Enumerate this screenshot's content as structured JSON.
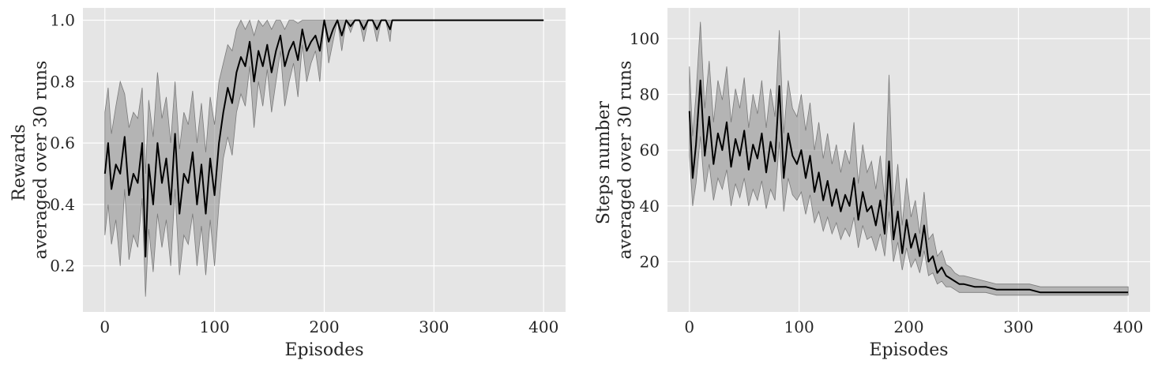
{
  "chart_data": [
    {
      "type": "line",
      "title": "",
      "xlabel": "Episodes",
      "ylabel_lines": [
        "Rewards",
        "averaged over 30 runs"
      ],
      "xlim": [
        -20,
        420
      ],
      "ylim": [
        0.05,
        1.04
      ],
      "xticks": [
        0,
        100,
        200,
        300,
        400
      ],
      "yticks": [
        0.2,
        0.4,
        0.6,
        0.8,
        1.0
      ],
      "xtick_labels": [
        "0",
        "100",
        "200",
        "300",
        "400"
      ],
      "ytick_labels": [
        "0.2",
        "0.4",
        "0.6",
        "0.8",
        "1.0"
      ],
      "grid": true,
      "legend": "none",
      "series": [
        {
          "kind": "mean",
          "color": "#000000",
          "x": [
            0,
            3,
            6,
            10,
            14,
            18,
            22,
            26,
            30,
            34,
            37,
            40,
            44,
            48,
            52,
            56,
            60,
            64,
            68,
            72,
            76,
            80,
            84,
            88,
            92,
            96,
            100,
            104,
            108,
            112,
            116,
            120,
            124,
            128,
            132,
            136,
            140,
            144,
            148,
            152,
            156,
            160,
            164,
            168,
            172,
            176,
            180,
            184,
            188,
            192,
            196,
            200,
            204,
            208,
            212,
            216,
            220,
            224,
            228,
            232,
            236,
            240,
            244,
            248,
            252,
            256,
            260,
            262,
            300,
            350,
            400
          ],
          "y": [
            0.5,
            0.6,
            0.45,
            0.53,
            0.5,
            0.62,
            0.43,
            0.5,
            0.47,
            0.6,
            0.23,
            0.53,
            0.4,
            0.6,
            0.47,
            0.55,
            0.4,
            0.63,
            0.37,
            0.5,
            0.47,
            0.57,
            0.4,
            0.53,
            0.37,
            0.55,
            0.43,
            0.6,
            0.7,
            0.78,
            0.73,
            0.83,
            0.88,
            0.85,
            0.93,
            0.8,
            0.9,
            0.85,
            0.92,
            0.83,
            0.9,
            0.95,
            0.85,
            0.9,
            0.93,
            0.87,
            0.97,
            0.9,
            0.93,
            0.95,
            0.9,
            1.0,
            0.93,
            0.97,
            1.0,
            0.95,
            1.0,
            0.98,
            1.0,
            1.0,
            0.97,
            1.0,
            1.0,
            0.97,
            1.0,
            1.0,
            0.97,
            1.0,
            1.0,
            1.0,
            1.0
          ]
        },
        {
          "kind": "band_upper",
          "color": "#8c8c8c",
          "x": [
            0,
            3,
            6,
            10,
            14,
            18,
            22,
            26,
            30,
            34,
            37,
            40,
            44,
            48,
            52,
            56,
            60,
            64,
            68,
            72,
            76,
            80,
            84,
            88,
            92,
            96,
            100,
            104,
            108,
            112,
            116,
            120,
            124,
            128,
            132,
            136,
            140,
            144,
            148,
            152,
            156,
            160,
            164,
            168,
            172,
            176,
            180,
            184,
            188,
            192,
            196,
            200,
            204,
            208,
            212,
            216,
            220,
            224,
            228,
            232,
            236,
            240,
            244,
            248,
            252,
            256,
            260,
            262,
            300,
            350,
            400
          ],
          "y": [
            0.7,
            0.78,
            0.63,
            0.72,
            0.8,
            0.76,
            0.65,
            0.7,
            0.68,
            0.78,
            0.5,
            0.74,
            0.62,
            0.83,
            0.68,
            0.75,
            0.6,
            0.8,
            0.58,
            0.7,
            0.66,
            0.77,
            0.6,
            0.73,
            0.57,
            0.75,
            0.66,
            0.8,
            0.86,
            0.92,
            0.9,
            0.97,
            1.0,
            0.97,
            1.0,
            0.95,
            1.0,
            0.98,
            1.0,
            0.97,
            1.0,
            1.0,
            0.97,
            1.0,
            1.0,
            0.99,
            1.0,
            1.0,
            1.0,
            1.0,
            1.0,
            1.0,
            1.0,
            1.0,
            1.0,
            1.0,
            1.0,
            1.0,
            1.0,
            1.0,
            1.0,
            1.0,
            1.0,
            1.0,
            1.0,
            1.0,
            1.0,
            1.0,
            1.0,
            1.0,
            1.0
          ]
        },
        {
          "kind": "band_lower",
          "color": "#8c8c8c",
          "x": [
            0,
            3,
            6,
            10,
            14,
            18,
            22,
            26,
            30,
            34,
            37,
            40,
            44,
            48,
            52,
            56,
            60,
            64,
            68,
            72,
            76,
            80,
            84,
            88,
            92,
            96,
            100,
            104,
            108,
            112,
            116,
            120,
            124,
            128,
            132,
            136,
            140,
            144,
            148,
            152,
            156,
            160,
            164,
            168,
            172,
            176,
            180,
            184,
            188,
            192,
            196,
            200,
            204,
            208,
            212,
            216,
            220,
            224,
            228,
            232,
            236,
            240,
            244,
            248,
            252,
            256,
            260,
            262,
            300,
            350,
            400
          ],
          "y": [
            0.3,
            0.4,
            0.27,
            0.35,
            0.2,
            0.45,
            0.22,
            0.3,
            0.26,
            0.42,
            0.1,
            0.32,
            0.18,
            0.37,
            0.26,
            0.35,
            0.2,
            0.45,
            0.17,
            0.3,
            0.27,
            0.37,
            0.2,
            0.33,
            0.17,
            0.35,
            0.2,
            0.4,
            0.55,
            0.62,
            0.56,
            0.7,
            0.76,
            0.72,
            0.85,
            0.65,
            0.8,
            0.72,
            0.84,
            0.7,
            0.8,
            0.9,
            0.72,
            0.8,
            0.86,
            0.75,
            0.92,
            0.8,
            0.86,
            0.9,
            0.8,
            1.0,
            0.86,
            0.93,
            1.0,
            0.9,
            1.0,
            0.96,
            1.0,
            1.0,
            0.93,
            1.0,
            1.0,
            0.93,
            1.0,
            1.0,
            0.93,
            1.0,
            1.0,
            1.0,
            1.0
          ]
        }
      ]
    },
    {
      "type": "line",
      "title": "",
      "xlabel": "Episodes",
      "ylabel_lines": [
        "Steps number",
        "averaged over 30 runs"
      ],
      "xlim": [
        -20,
        420
      ],
      "ylim": [
        2,
        111
      ],
      "xticks": [
        0,
        100,
        200,
        300,
        400
      ],
      "yticks": [
        20,
        40,
        60,
        80,
        100
      ],
      "xtick_labels": [
        "0",
        "100",
        "200",
        "300",
        "400"
      ],
      "ytick_labels": [
        "20",
        "40",
        "60",
        "80",
        "100"
      ],
      "grid": true,
      "legend": "none",
      "series": [
        {
          "kind": "mean",
          "color": "#000000",
          "x": [
            0,
            3,
            6,
            10,
            14,
            18,
            22,
            26,
            30,
            34,
            38,
            42,
            46,
            50,
            54,
            58,
            62,
            66,
            70,
            74,
            78,
            82,
            86,
            90,
            94,
            98,
            102,
            106,
            110,
            114,
            118,
            122,
            126,
            130,
            134,
            138,
            142,
            146,
            150,
            154,
            158,
            162,
            166,
            170,
            174,
            178,
            182,
            186,
            190,
            194,
            198,
            202,
            206,
            210,
            214,
            218,
            222,
            226,
            230,
            234,
            238,
            242,
            246,
            250,
            260,
            270,
            280,
            290,
            300,
            310,
            320,
            330,
            340,
            350,
            360,
            370,
            380,
            390,
            400
          ],
          "y": [
            74,
            50,
            62,
            85,
            58,
            72,
            55,
            66,
            60,
            70,
            54,
            64,
            58,
            67,
            53,
            62,
            57,
            66,
            52,
            63,
            56,
            83,
            50,
            66,
            58,
            55,
            60,
            50,
            58,
            45,
            52,
            42,
            49,
            40,
            46,
            38,
            44,
            40,
            50,
            35,
            45,
            38,
            40,
            33,
            42,
            30,
            56,
            28,
            38,
            23,
            35,
            25,
            30,
            22,
            33,
            20,
            22,
            16,
            18,
            15,
            14,
            13,
            12,
            12,
            11,
            11,
            10,
            10,
            10,
            10,
            9,
            9,
            9,
            9,
            9,
            9,
            9,
            9,
            9
          ]
        },
        {
          "kind": "band_upper",
          "color": "#8c8c8c",
          "x": [
            0,
            3,
            6,
            10,
            14,
            18,
            22,
            26,
            30,
            34,
            38,
            42,
            46,
            50,
            54,
            58,
            62,
            66,
            70,
            74,
            78,
            82,
            86,
            90,
            94,
            98,
            102,
            106,
            110,
            114,
            118,
            122,
            126,
            130,
            134,
            138,
            142,
            146,
            150,
            154,
            158,
            162,
            166,
            170,
            174,
            178,
            182,
            186,
            190,
            194,
            198,
            202,
            206,
            210,
            214,
            218,
            222,
            226,
            230,
            234,
            238,
            242,
            246,
            250,
            260,
            270,
            280,
            290,
            300,
            310,
            320,
            330,
            340,
            350,
            360,
            370,
            380,
            390,
            400
          ],
          "y": [
            90,
            65,
            80,
            106,
            75,
            92,
            70,
            85,
            78,
            90,
            70,
            82,
            75,
            86,
            68,
            80,
            73,
            85,
            68,
            82,
            72,
            103,
            66,
            85,
            75,
            72,
            80,
            67,
            77,
            60,
            70,
            57,
            66,
            55,
            62,
            52,
            60,
            55,
            70,
            48,
            62,
            52,
            56,
            46,
            58,
            42,
            87,
            40,
            55,
            33,
            50,
            36,
            42,
            30,
            45,
            28,
            30,
            22,
            24,
            19,
            18,
            16,
            15,
            15,
            14,
            13,
            12,
            12,
            12,
            12,
            11,
            11,
            11,
            11,
            11,
            11,
            11,
            11,
            11
          ]
        },
        {
          "kind": "band_lower",
          "color": "#8c8c8c",
          "x": [
            0,
            3,
            6,
            10,
            14,
            18,
            22,
            26,
            30,
            34,
            38,
            42,
            46,
            50,
            54,
            58,
            62,
            66,
            70,
            74,
            78,
            82,
            86,
            90,
            94,
            98,
            102,
            106,
            110,
            114,
            118,
            122,
            126,
            130,
            134,
            138,
            142,
            146,
            150,
            154,
            158,
            162,
            166,
            170,
            174,
            178,
            182,
            186,
            190,
            194,
            198,
            202,
            206,
            210,
            214,
            218,
            222,
            226,
            230,
            234,
            238,
            242,
            246,
            250,
            260,
            270,
            280,
            290,
            300,
            310,
            320,
            330,
            340,
            350,
            360,
            370,
            380,
            390,
            400
          ],
          "y": [
            58,
            40,
            48,
            65,
            45,
            55,
            42,
            50,
            46,
            53,
            40,
            48,
            43,
            50,
            40,
            46,
            42,
            49,
            39,
            46,
            42,
            63,
            38,
            50,
            44,
            42,
            45,
            37,
            44,
            34,
            38,
            31,
            36,
            30,
            34,
            28,
            32,
            29,
            36,
            25,
            33,
            28,
            29,
            24,
            30,
            22,
            38,
            20,
            27,
            17,
            25,
            18,
            21,
            16,
            24,
            15,
            16,
            12,
            13,
            11,
            11,
            10,
            9,
            9,
            9,
            9,
            8,
            8,
            8,
            8,
            8,
            8,
            8,
            8,
            8,
            8,
            8,
            8,
            8
          ]
        }
      ]
    }
  ]
}
